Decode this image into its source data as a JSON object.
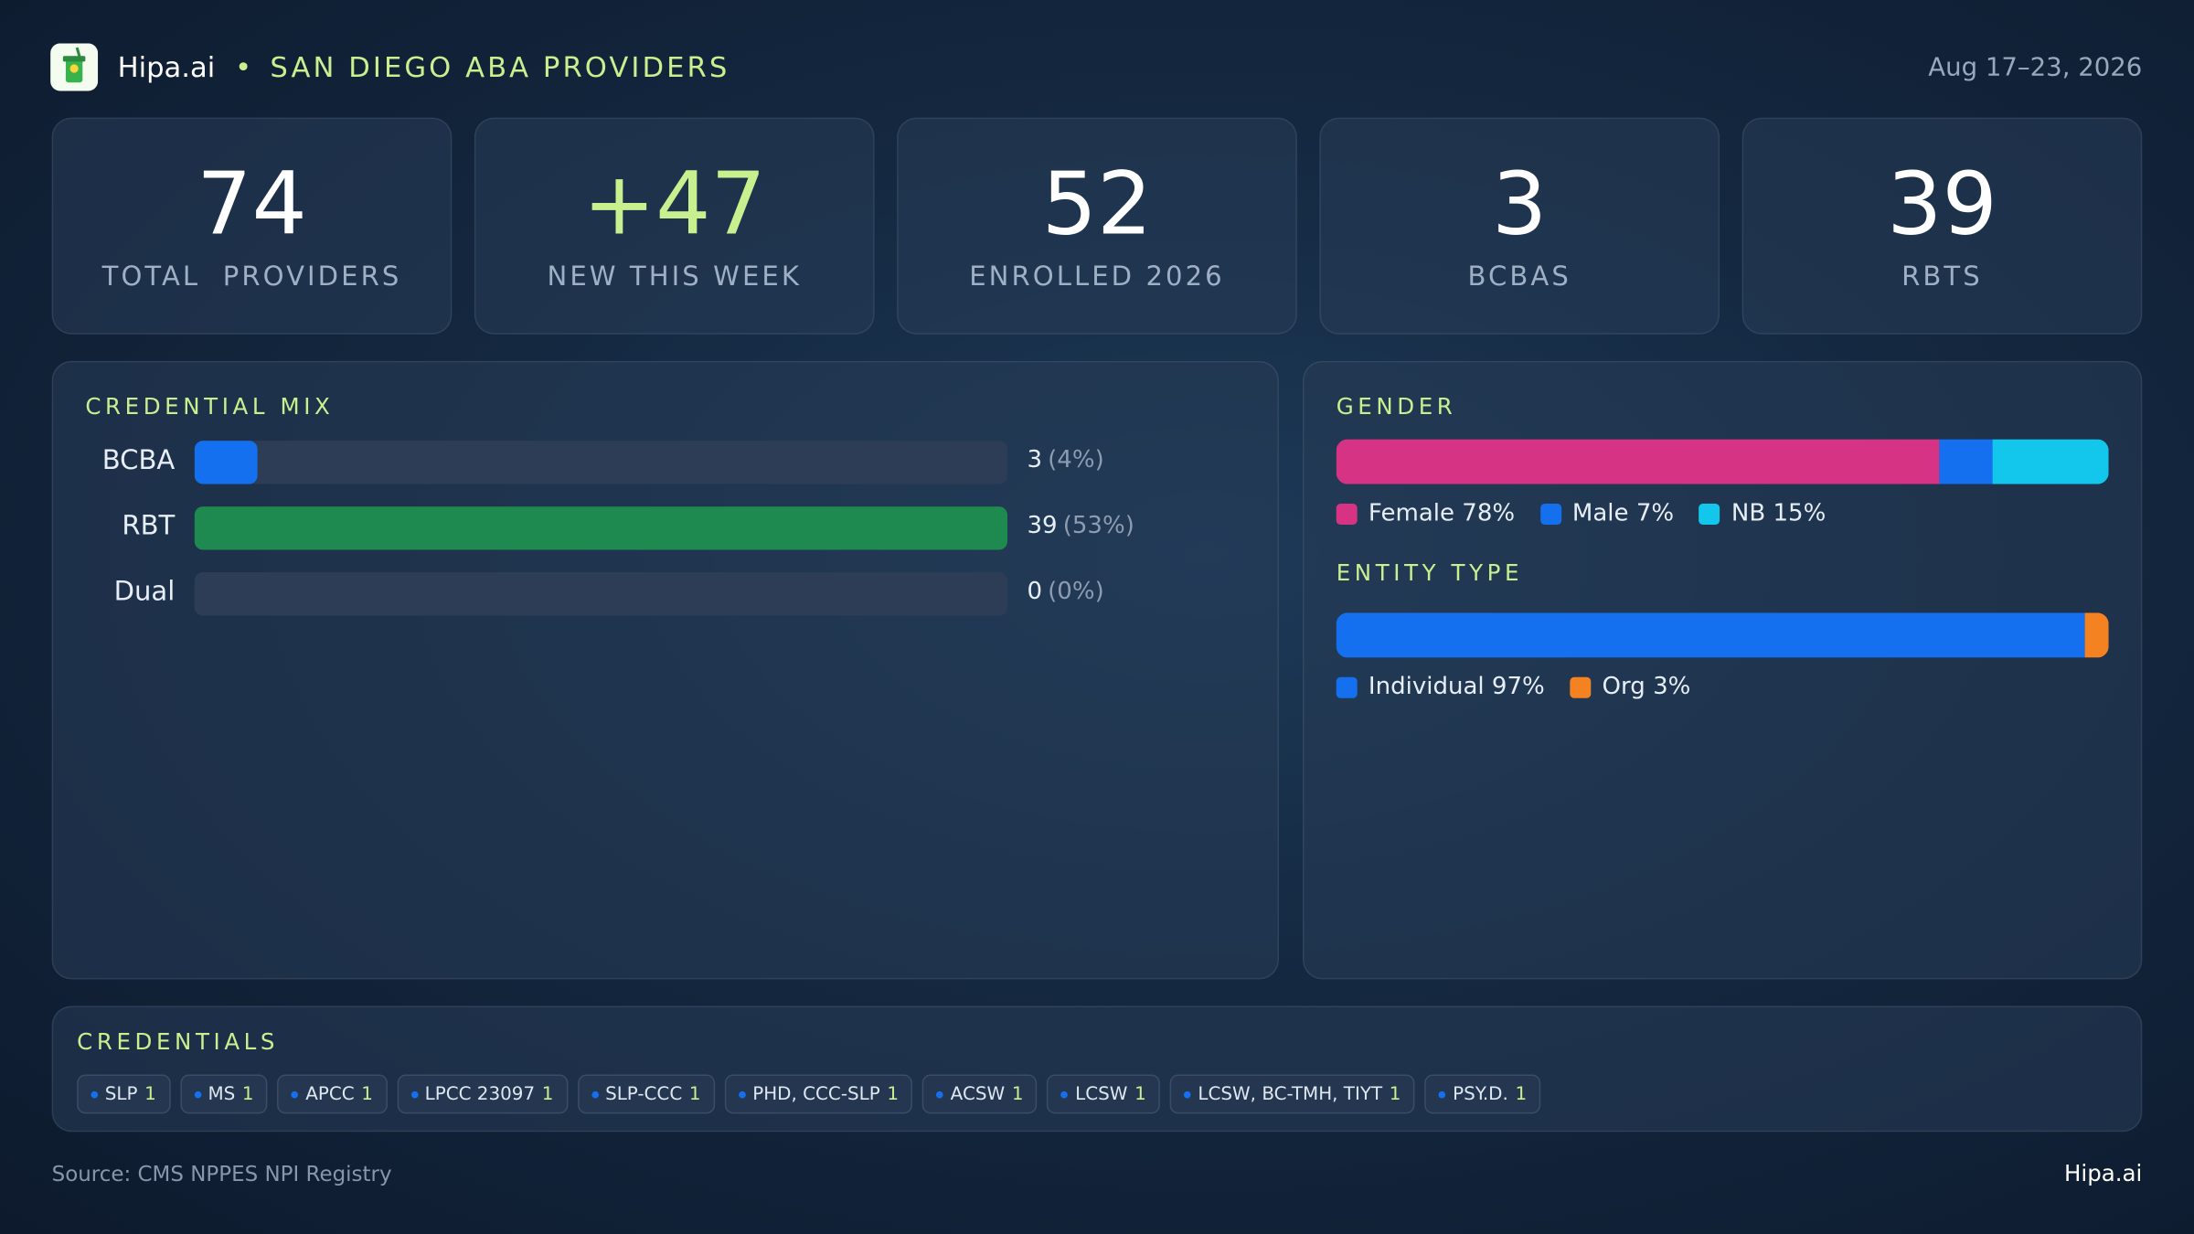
{
  "header": {
    "brand": "Hipa.ai",
    "title": "SAN DIEGO ABA PROVIDERS",
    "date": "Aug 17–23, 2026"
  },
  "kpis": [
    {
      "value": 74,
      "label": "TOTAL  PROVIDERS"
    },
    {
      "value": "+47",
      "label": "NEW THIS WEEK"
    },
    {
      "value": 52,
      "label": "ENROLLED 2026"
    },
    {
      "value": 3,
      "label": "BCBAS"
    },
    {
      "value": 39,
      "label": "RBTS"
    }
  ],
  "credential_mix": {
    "title": "CREDENTIAL MIX",
    "categories": [
      "BCBA",
      "RBT",
      "Dual"
    ],
    "values": [
      3,
      39,
      0
    ],
    "percent_labels": [
      "(4%)",
      "(53%)",
      "(0%)"
    ],
    "colors": [
      "#1570ef",
      "#1e8a4f"
    ]
  },
  "gender": {
    "title": "GENDER",
    "segments": [
      {
        "name": "Female",
        "value": 78,
        "label": "78%",
        "color": "#d63384"
      },
      {
        "name": "Male",
        "value": 7,
        "label": "7%",
        "color": "#1570ef"
      },
      {
        "name": "NB",
        "value": 15,
        "label": "15%",
        "color": "#12c6ec"
      }
    ]
  },
  "entity_type": {
    "title": "ENTITY TYPE",
    "segments": [
      {
        "name": "Individual",
        "value": 97,
        "label": "97%",
        "color": "#1570ef"
      },
      {
        "name": "Org",
        "value": 3,
        "label": "3%",
        "color": "#f58220"
      }
    ]
  },
  "credentials": {
    "title": "CREDENTIALS",
    "chips": [
      {
        "name": "SLP",
        "count": 1
      },
      {
        "name": "MS",
        "count": 1
      },
      {
        "name": "APCC",
        "count": 1
      },
      {
        "name": "LPCC 23097",
        "count": 1
      },
      {
        "name": "SLP-CCC",
        "count": 1
      },
      {
        "name": "PHD, CCC-SLP",
        "count": 1
      },
      {
        "name": "ACSW",
        "count": 1
      },
      {
        "name": "LCSW",
        "count": 1
      },
      {
        "name": "LCSW, BC-TMH, TIYT",
        "count": 1
      },
      {
        "name": "PSY.D.",
        "count": 1
      }
    ]
  },
  "footer": {
    "source": "Source: CMS NPPES NPI Registry",
    "brand": "Hipa.ai"
  }
}
